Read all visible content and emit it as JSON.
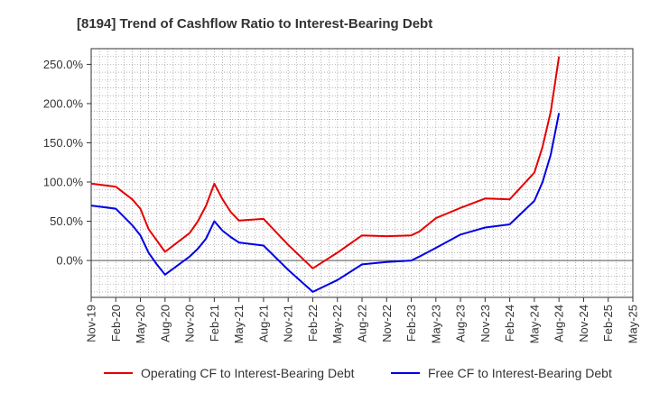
{
  "chart_data": {
    "type": "line",
    "title": "[8194]  Trend of Cashflow Ratio to Interest-Bearing Debt",
    "xlabel": "",
    "ylabel": "",
    "ylim": [
      -47,
      270
    ],
    "y_ticks": [
      0,
      50,
      100,
      150,
      200,
      250
    ],
    "y_tick_labels": [
      "0.0%",
      "50.0%",
      "100.0%",
      "150.0%",
      "200.0%",
      "250.0%"
    ],
    "x_tick_labels": [
      "Nov-19",
      "Feb-20",
      "May-20",
      "Aug-20",
      "Nov-20",
      "Feb-21",
      "May-21",
      "Aug-21",
      "Nov-21",
      "Feb-22",
      "May-22",
      "Aug-22",
      "Nov-22",
      "Feb-23",
      "May-23",
      "Aug-23",
      "Nov-23",
      "Feb-24",
      "May-24",
      "Aug-24",
      "Nov-24",
      "Feb-25",
      "May-25"
    ],
    "grid": true,
    "legend_position": "bottom",
    "series": [
      {
        "name": "Operating CF to Interest-Bearing Debt",
        "color": "#e60000",
        "points": [
          [
            0,
            98
          ],
          [
            3,
            94
          ],
          [
            5,
            78
          ],
          [
            6,
            66
          ],
          [
            7,
            40
          ],
          [
            9,
            11
          ],
          [
            12,
            35
          ],
          [
            13,
            50
          ],
          [
            14,
            70
          ],
          [
            15,
            98
          ],
          [
            16,
            78
          ],
          [
            17,
            62
          ],
          [
            18,
            51
          ],
          [
            21,
            53
          ],
          [
            24,
            20
          ],
          [
            27,
            -10
          ],
          [
            30,
            10
          ],
          [
            33,
            32
          ],
          [
            36,
            31
          ],
          [
            39,
            32
          ],
          [
            40,
            37
          ],
          [
            42,
            54
          ],
          [
            45,
            67
          ],
          [
            48,
            79
          ],
          [
            51,
            78
          ],
          [
            54,
            112
          ],
          [
            55,
            145
          ],
          [
            56,
            190
          ],
          [
            57,
            260
          ]
        ]
      },
      {
        "name": "Free CF to Interest-Bearing Debt",
        "color": "#0000e6",
        "points": [
          [
            0,
            70
          ],
          [
            3,
            66
          ],
          [
            5,
            45
          ],
          [
            6,
            32
          ],
          [
            7,
            10
          ],
          [
            8,
            -5
          ],
          [
            9,
            -18
          ],
          [
            12,
            5
          ],
          [
            13,
            15
          ],
          [
            14,
            28
          ],
          [
            15,
            50
          ],
          [
            16,
            38
          ],
          [
            17,
            30
          ],
          [
            18,
            23
          ],
          [
            21,
            19
          ],
          [
            24,
            -12
          ],
          [
            27,
            -40
          ],
          [
            30,
            -25
          ],
          [
            33,
            -5
          ],
          [
            36,
            -2
          ],
          [
            39,
            0
          ],
          [
            40,
            5
          ],
          [
            42,
            16
          ],
          [
            45,
            33
          ],
          [
            48,
            42
          ],
          [
            51,
            46
          ],
          [
            54,
            76
          ],
          [
            55,
            100
          ],
          [
            56,
            135
          ],
          [
            57,
            188
          ]
        ]
      }
    ]
  }
}
